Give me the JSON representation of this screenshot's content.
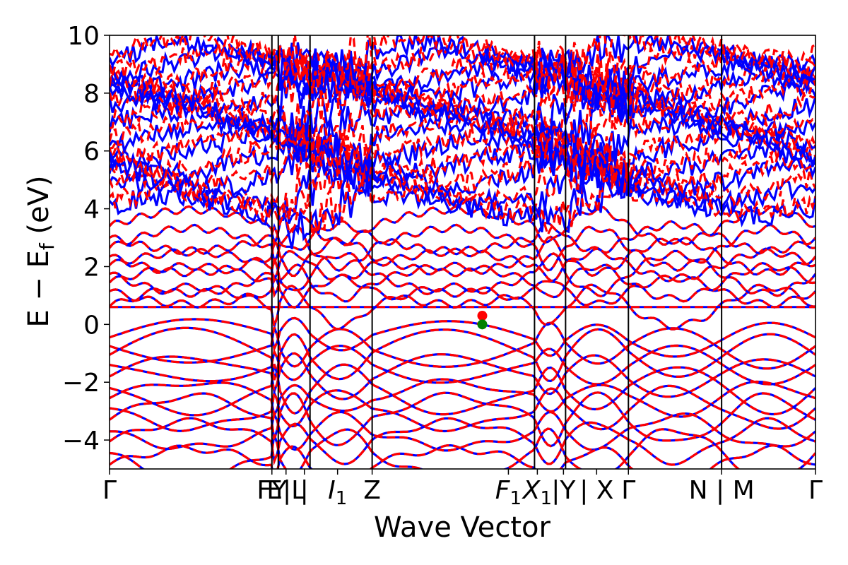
{
  "chart_data": {
    "type": "line",
    "xlabel": "Wave Vector",
    "ylabel_main": "E − E",
    "ylabel_sub": "f",
    "ylabel_unit": " (eV)",
    "ylim": [
      -5,
      10
    ],
    "yticks": [
      {
        "value": 10,
        "label": "10"
      },
      {
        "value": 8,
        "label": "8"
      },
      {
        "value": 6,
        "label": "6"
      },
      {
        "value": 4,
        "label": "4"
      },
      {
        "value": 2,
        "label": "2"
      },
      {
        "value": 0,
        "label": "0"
      },
      {
        "value": -2,
        "label": "−2"
      },
      {
        "value": -4,
        "label": "−4"
      }
    ],
    "xlim": [
      0,
      1
    ],
    "kpoint_lines": [
      0.23,
      0.239,
      0.284,
      0.372,
      0.602,
      0.646,
      0.735,
      0.867
    ],
    "xticks": [
      {
        "pos": 0.0,
        "main": "Γ",
        "sub": ""
      },
      {
        "pos": 0.23,
        "main": "FY",
        "sub": ""
      },
      {
        "pos": 0.25,
        "main": "E|L",
        "sub": ""
      },
      {
        "pos": 0.276,
        "main": "|",
        "sub": ""
      },
      {
        "pos": 0.323,
        "main": "I",
        "sub": "1",
        "italic": true
      },
      {
        "pos": 0.372,
        "main": "Z",
        "sub": ""
      },
      {
        "pos": 0.565,
        "main": "F",
        "sub": "1",
        "italic": true
      },
      {
        "pos": 0.606,
        "main": "X",
        "sub": "1",
        "italic": true
      },
      {
        "pos": 0.643,
        "main": "|Y",
        "sub": ""
      },
      {
        "pos": 0.69,
        "main": "| X",
        "sub": ""
      },
      {
        "pos": 0.735,
        "main": "Γ",
        "sub": ""
      },
      {
        "pos": 0.867,
        "main": "N | M",
        "sub": ""
      },
      {
        "pos": 1.0,
        "main": "Γ",
        "sub": ""
      }
    ],
    "series": [
      {
        "style": "solid",
        "color": "#0000ff"
      },
      {
        "style": "dashed",
        "color": "#ff0000"
      }
    ],
    "valence_bands": [
      -0.45,
      -0.75,
      -1.05,
      -1.4,
      -1.8,
      -2.2,
      -2.55,
      -2.9,
      -3.3,
      -3.7,
      -4.05,
      -4.45,
      -4.85
    ],
    "conduction_bands_low": [
      0.62,
      1.15,
      1.45,
      1.75,
      2.05,
      2.35,
      2.65,
      3.0,
      3.4
    ],
    "flat_band": 0.6,
    "high_bands": [
      4.1,
      4.6,
      5.1,
      5.6,
      6.1,
      6.6,
      7.0,
      7.4,
      7.8,
      8.2,
      8.6,
      9.0,
      9.4
    ],
    "markers": [
      {
        "x": 0.528,
        "y": 0.3,
        "color": "#ff0000"
      },
      {
        "x": 0.528,
        "y": 0.0,
        "color": "#008000"
      }
    ]
  }
}
